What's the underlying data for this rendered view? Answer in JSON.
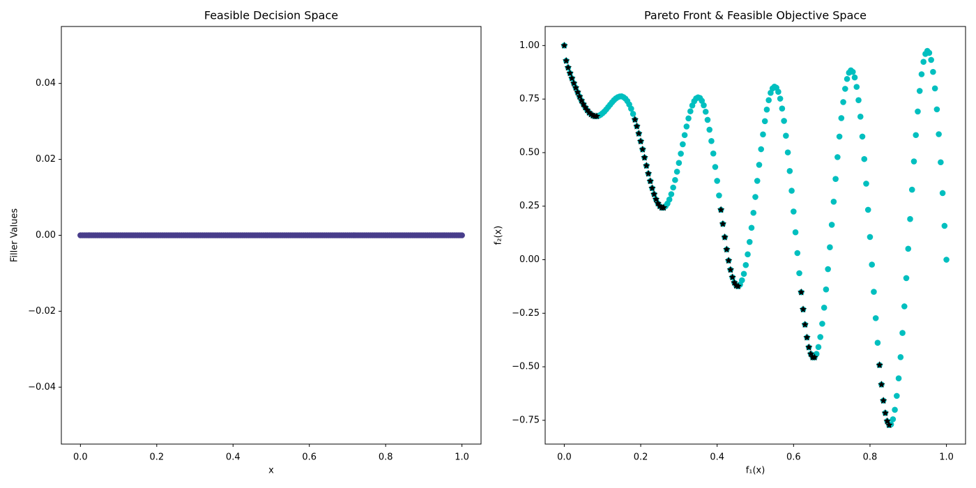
{
  "chart_data": [
    {
      "type": "scatter",
      "title": "Feasible Decision Space",
      "xlabel": "x",
      "ylabel": "Filler Values",
      "color": "#483d8b",
      "marker": "circle",
      "xlim": [
        -0.05,
        1.05
      ],
      "ylim": [
        -0.055,
        0.055
      ],
      "xticks": [
        {
          "value": 0,
          "label": "0.0"
        },
        {
          "value": 0.2,
          "label": "0.2"
        },
        {
          "value": 0.4,
          "label": "0.4"
        },
        {
          "value": 0.6,
          "label": "0.6"
        },
        {
          "value": 0.8,
          "label": "0.8"
        },
        {
          "value": 1,
          "label": "1.0"
        }
      ],
      "yticks": [
        {
          "value": -0.04,
          "label": "−0.04"
        },
        {
          "value": -0.02,
          "label": "−0.02"
        },
        {
          "value": 0,
          "label": "0.00"
        },
        {
          "value": 0.02,
          "label": "0.02"
        },
        {
          "value": 0.04,
          "label": "0.04"
        }
      ],
      "x": [
        0,
        0.005,
        0.01,
        0.015,
        0.02,
        0.025,
        0.03,
        0.035,
        0.04,
        0.045,
        0.05,
        0.055,
        0.06,
        0.065,
        0.07,
        0.075,
        0.08,
        0.085,
        0.09,
        0.095,
        0.1,
        0.105,
        0.11,
        0.115,
        0.12,
        0.125,
        0.13,
        0.135,
        0.14,
        0.145,
        0.15,
        0.155,
        0.16,
        0.165,
        0.17,
        0.175,
        0.18,
        0.185,
        0.19,
        0.195,
        0.2,
        0.205,
        0.21,
        0.215,
        0.22,
        0.225,
        0.23,
        0.235,
        0.24,
        0.245,
        0.25,
        0.255,
        0.26,
        0.265,
        0.27,
        0.275,
        0.28,
        0.285,
        0.29,
        0.295,
        0.3,
        0.305,
        0.31,
        0.315,
        0.32,
        0.325,
        0.33,
        0.335,
        0.34,
        0.345,
        0.35,
        0.355,
        0.36,
        0.365,
        0.37,
        0.375,
        0.38,
        0.385,
        0.39,
        0.395,
        0.4,
        0.405,
        0.41,
        0.415,
        0.42,
        0.425,
        0.43,
        0.435,
        0.44,
        0.445,
        0.45,
        0.455,
        0.46,
        0.465,
        0.47,
        0.475,
        0.48,
        0.485,
        0.49,
        0.495,
        0.5,
        0.505,
        0.51,
        0.515,
        0.52,
        0.525,
        0.53,
        0.535,
        0.54,
        0.545,
        0.55,
        0.555,
        0.56,
        0.565,
        0.57,
        0.575,
        0.58,
        0.585,
        0.59,
        0.595,
        0.6,
        0.605,
        0.61,
        0.615,
        0.62,
        0.625,
        0.63,
        0.635,
        0.64,
        0.645,
        0.65,
        0.655,
        0.66,
        0.665,
        0.67,
        0.675,
        0.68,
        0.685,
        0.69,
        0.695,
        0.7,
        0.705,
        0.71,
        0.715,
        0.72,
        0.725,
        0.73,
        0.735,
        0.74,
        0.745,
        0.75,
        0.755,
        0.76,
        0.765,
        0.77,
        0.775,
        0.78,
        0.785,
        0.79,
        0.795,
        0.8,
        0.805,
        0.81,
        0.815,
        0.82,
        0.825,
        0.83,
        0.835,
        0.84,
        0.845,
        0.85,
        0.855,
        0.86,
        0.865,
        0.87,
        0.875,
        0.88,
        0.885,
        0.89,
        0.895,
        0.9,
        0.905,
        0.91,
        0.915,
        0.92,
        0.925,
        0.93,
        0.935,
        0.94,
        0.945,
        0.95,
        0.955,
        0.96,
        0.965,
        0.97,
        0.975,
        0.98,
        0.985,
        0.99,
        0.995,
        1
      ],
      "values": [
        0,
        0,
        0,
        0,
        0,
        0,
        0,
        0,
        0,
        0,
        0,
        0,
        0,
        0,
        0,
        0,
        0,
        0,
        0,
        0,
        0,
        0,
        0,
        0,
        0,
        0,
        0,
        0,
        0,
        0,
        0,
        0,
        0,
        0,
        0,
        0,
        0,
        0,
        0,
        0,
        0,
        0,
        0,
        0,
        0,
        0,
        0,
        0,
        0,
        0,
        0,
        0,
        0,
        0,
        0,
        0,
        0,
        0,
        0,
        0,
        0,
        0,
        0,
        0,
        0,
        0,
        0,
        0,
        0,
        0,
        0,
        0,
        0,
        0,
        0,
        0,
        0,
        0,
        0,
        0,
        0,
        0,
        0,
        0,
        0,
        0,
        0,
        0,
        0,
        0,
        0,
        0,
        0,
        0,
        0,
        0,
        0,
        0,
        0,
        0,
        0,
        0,
        0,
        0,
        0,
        0,
        0,
        0,
        0,
        0,
        0,
        0,
        0,
        0,
        0,
        0,
        0,
        0,
        0,
        0,
        0,
        0,
        0,
        0,
        0,
        0,
        0,
        0,
        0,
        0,
        0,
        0,
        0,
        0,
        0,
        0,
        0,
        0,
        0,
        0,
        0,
        0,
        0,
        0,
        0,
        0,
        0,
        0,
        0,
        0,
        0,
        0,
        0,
        0,
        0,
        0,
        0,
        0,
        0,
        0,
        0,
        0,
        0,
        0,
        0,
        0,
        0,
        0,
        0,
        0,
        0,
        0,
        0,
        0,
        0,
        0,
        0,
        0,
        0,
        0,
        0,
        0,
        0,
        0,
        0,
        0,
        0,
        0,
        0,
        0,
        0,
        0,
        0,
        0,
        0,
        0,
        0,
        0,
        0,
        0,
        0
      ]
    },
    {
      "type": "scatter",
      "title": "Pareto Front & Feasible Objective Space",
      "xlabel": "f₁(x)",
      "ylabel": "f₂(x)",
      "xlim": [
        -0.05,
        1.05
      ],
      "ylim": [
        -0.861,
        1.089
      ],
      "xticks": [
        {
          "value": 0,
          "label": "0.0"
        },
        {
          "value": 0.2,
          "label": "0.2"
        },
        {
          "value": 0.4,
          "label": "0.4"
        },
        {
          "value": 0.6,
          "label": "0.6"
        },
        {
          "value": 0.8,
          "label": "0.8"
        },
        {
          "value": 1,
          "label": "1.0"
        }
      ],
      "yticks": [
        {
          "value": -0.75,
          "label": "−0.75"
        },
        {
          "value": -0.5,
          "label": "−0.50"
        },
        {
          "value": -0.25,
          "label": "−0.25"
        },
        {
          "value": 0,
          "label": "0.00"
        },
        {
          "value": 0.25,
          "label": "0.25"
        },
        {
          "value": 0.5,
          "label": "0.50"
        },
        {
          "value": 0.75,
          "label": "0.75"
        },
        {
          "value": 1,
          "label": "1.00"
        }
      ],
      "series": [
        {
          "color": "#00bfbf",
          "marker": "circle",
          "x": [
            0,
            0.005,
            0.01,
            0.015,
            0.02,
            0.025,
            0.03,
            0.035,
            0.04,
            0.045,
            0.05,
            0.055,
            0.06,
            0.065,
            0.07,
            0.075,
            0.08,
            0.085,
            0.09,
            0.095,
            0.1,
            0.105,
            0.11,
            0.115,
            0.12,
            0.125,
            0.13,
            0.135,
            0.14,
            0.145,
            0.15,
            0.155,
            0.16,
            0.165,
            0.17,
            0.175,
            0.18,
            0.185,
            0.19,
            0.195,
            0.2,
            0.205,
            0.21,
            0.215,
            0.22,
            0.225,
            0.23,
            0.235,
            0.24,
            0.245,
            0.25,
            0.255,
            0.26,
            0.265,
            0.27,
            0.275,
            0.28,
            0.285,
            0.29,
            0.295,
            0.3,
            0.305,
            0.31,
            0.315,
            0.32,
            0.325,
            0.33,
            0.335,
            0.34,
            0.345,
            0.35,
            0.355,
            0.36,
            0.365,
            0.37,
            0.375,
            0.38,
            0.385,
            0.39,
            0.395,
            0.4,
            0.405,
            0.41,
            0.415,
            0.42,
            0.425,
            0.43,
            0.435,
            0.44,
            0.445,
            0.45,
            0.455,
            0.46,
            0.465,
            0.47,
            0.475,
            0.48,
            0.485,
            0.49,
            0.495,
            0.5,
            0.505,
            0.51,
            0.515,
            0.52,
            0.525,
            0.53,
            0.535,
            0.54,
            0.545,
            0.55,
            0.555,
            0.56,
            0.565,
            0.57,
            0.575,
            0.58,
            0.585,
            0.59,
            0.595,
            0.6,
            0.605,
            0.61,
            0.615,
            0.62,
            0.625,
            0.63,
            0.635,
            0.64,
            0.645,
            0.65,
            0.655,
            0.66,
            0.665,
            0.67,
            0.675,
            0.68,
            0.685,
            0.69,
            0.695,
            0.7,
            0.705,
            0.71,
            0.715,
            0.72,
            0.725,
            0.73,
            0.735,
            0.74,
            0.745,
            0.75,
            0.755,
            0.76,
            0.765,
            0.77,
            0.775,
            0.78,
            0.785,
            0.79,
            0.795,
            0.8,
            0.805,
            0.81,
            0.815,
            0.82,
            0.825,
            0.83,
            0.835,
            0.84,
            0.845,
            0.85,
            0.855,
            0.86,
            0.865,
            0.87,
            0.875,
            0.88,
            0.885,
            0.89,
            0.895,
            0.9,
            0.905,
            0.91,
            0.915,
            0.92,
            0.925,
            0.93,
            0.935,
            0.94,
            0.945,
            0.95,
            0.955,
            0.96,
            0.965,
            0.97,
            0.975,
            0.98,
            0.985,
            0.99,
            0.995,
            1
          ],
          "values": [
            1.0,
            0.929,
            0.897,
            0.871,
            0.847,
            0.824,
            0.803,
            0.782,
            0.762,
            0.743,
            0.726,
            0.711,
            0.698,
            0.687,
            0.679,
            0.673,
            0.67,
            0.67,
            0.672,
            0.677,
            0.684,
            0.692,
            0.702,
            0.713,
            0.724,
            0.735,
            0.745,
            0.753,
            0.759,
            0.762,
            0.763,
            0.759,
            0.752,
            0.741,
            0.725,
            0.705,
            0.681,
            0.654,
            0.623,
            0.589,
            0.553,
            0.515,
            0.477,
            0.439,
            0.402,
            0.367,
            0.334,
            0.306,
            0.282,
            0.263,
            0.25,
            0.243,
            0.243,
            0.25,
            0.262,
            0.281,
            0.306,
            0.337,
            0.372,
            0.411,
            0.452,
            0.495,
            0.539,
            0.582,
            0.622,
            0.66,
            0.693,
            0.72,
            0.74,
            0.753,
            0.758,
            0.755,
            0.742,
            0.721,
            0.691,
            0.653,
            0.607,
            0.554,
            0.496,
            0.433,
            0.368,
            0.3,
            0.233,
            0.167,
            0.105,
            0.048,
            -0.004,
            -0.047,
            -0.082,
            -0.107,
            -0.121,
            -0.124,
            -0.116,
            -0.096,
            -0.066,
            -0.025,
            0.025,
            0.083,
            0.149,
            0.219,
            0.293,
            0.368,
            0.443,
            0.516,
            0.585,
            0.647,
            0.701,
            0.745,
            0.779,
            0.8,
            0.808,
            0.803,
            0.784,
            0.752,
            0.706,
            0.648,
            0.579,
            0.501,
            0.414,
            0.322,
            0.225,
            0.128,
            0.031,
            -0.063,
            -0.152,
            -0.232,
            -0.303,
            -0.363,
            -0.409,
            -0.44,
            -0.456,
            -0.456,
            -0.44,
            -0.408,
            -0.361,
            -0.299,
            -0.224,
            -0.139,
            -0.044,
            0.058,
            0.163,
            0.271,
            0.377,
            0.479,
            0.575,
            0.661,
            0.736,
            0.798,
            0.844,
            0.873,
            0.884,
            0.877,
            0.851,
            0.807,
            0.745,
            0.668,
            0.575,
            0.47,
            0.355,
            0.233,
            0.106,
            -0.023,
            -0.15,
            -0.273,
            -0.388,
            -0.492,
            -0.583,
            -0.658,
            -0.716,
            -0.754,
            -0.772,
            -0.769,
            -0.745,
            -0.701,
            -0.636,
            -0.554,
            -0.455,
            -0.342,
            -0.218,
            -0.086,
            0.051,
            0.19,
            0.327,
            0.459,
            0.582,
            0.692,
            0.788,
            0.866,
            0.924,
            0.961,
            0.975,
            0.966,
            0.933,
            0.877,
            0.8,
            0.702,
            0.586,
            0.455,
            0.311,
            0.158,
            0.0
          ]
        },
        {
          "color": "#000000",
          "marker": "star",
          "x": [
            0,
            0.005,
            0.01,
            0.015,
            0.02,
            0.025,
            0.03,
            0.035,
            0.04,
            0.045,
            0.05,
            0.055,
            0.06,
            0.065,
            0.07,
            0.075,
            0.08,
            0.085,
            0.185,
            0.19,
            0.195,
            0.2,
            0.205,
            0.21,
            0.215,
            0.22,
            0.225,
            0.23,
            0.235,
            0.24,
            0.245,
            0.25,
            0.255,
            0.26,
            0.41,
            0.415,
            0.42,
            0.425,
            0.43,
            0.435,
            0.44,
            0.445,
            0.45,
            0.455,
            0.62,
            0.625,
            0.63,
            0.635,
            0.64,
            0.645,
            0.65,
            0.655,
            0.825,
            0.83,
            0.835,
            0.84,
            0.845,
            0.85
          ],
          "values": [
            1.0,
            0.929,
            0.897,
            0.871,
            0.847,
            0.824,
            0.803,
            0.782,
            0.762,
            0.743,
            0.726,
            0.711,
            0.698,
            0.687,
            0.679,
            0.673,
            0.67,
            0.67,
            0.654,
            0.623,
            0.589,
            0.553,
            0.515,
            0.477,
            0.439,
            0.402,
            0.367,
            0.334,
            0.306,
            0.282,
            0.263,
            0.25,
            0.243,
            0.243,
            0.233,
            0.167,
            0.105,
            0.048,
            -0.004,
            -0.047,
            -0.082,
            -0.107,
            -0.121,
            -0.124,
            -0.152,
            -0.232,
            -0.303,
            -0.363,
            -0.409,
            -0.44,
            -0.456,
            -0.456,
            -0.492,
            -0.583,
            -0.658,
            -0.716,
            -0.754,
            -0.772
          ]
        }
      ]
    }
  ]
}
